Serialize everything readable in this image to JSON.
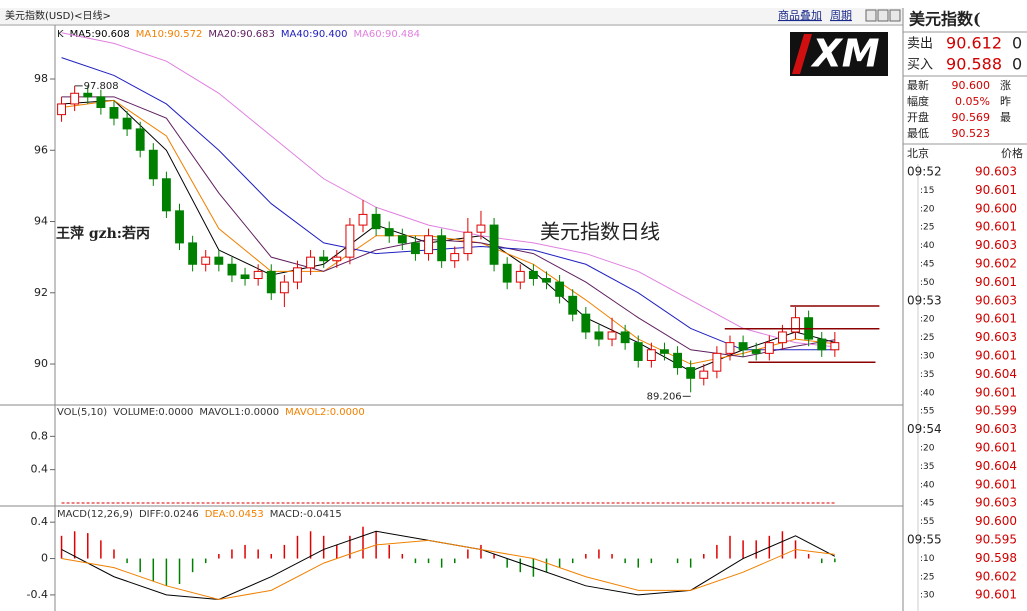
{
  "header": {
    "title": "美元指数(USD)<日线>",
    "links": [
      "商品叠加",
      "周期"
    ]
  },
  "logo": "XM",
  "chart_data": [
    {
      "type": "candlestick",
      "label_k": "K",
      "xlim": [
        -0.5,
        64.2
      ],
      "ylim": [
        88.85,
        99.46
      ],
      "yticks": [
        98,
        96,
        94,
        92,
        90
      ],
      "up_color": "#e00000",
      "down_color": "#008000",
      "open": [
        97.0,
        97.3,
        97.6,
        97.5,
        97.2,
        96.9,
        96.6,
        96.0,
        95.2,
        94.3,
        93.4,
        92.8,
        93.0,
        92.8,
        92.5,
        92.4,
        92.6,
        92.0,
        92.3,
        92.7,
        93.0,
        92.9,
        93.0,
        93.9,
        94.2,
        93.8,
        93.6,
        93.4,
        93.1,
        93.6,
        92.9,
        93.1,
        93.7,
        93.9,
        92.8,
        92.3,
        92.6,
        92.4,
        92.3,
        91.9,
        91.4,
        90.9,
        90.7,
        90.9,
        90.6,
        90.1,
        90.4,
        90.3,
        89.9,
        89.6,
        89.8,
        90.3,
        90.6,
        90.4,
        90.3,
        90.6,
        90.9,
        91.3,
        90.7,
        90.4
      ],
      "high": [
        97.5,
        97.808,
        97.8,
        97.7,
        97.4,
        97.1,
        96.8,
        96.2,
        95.4,
        94.5,
        93.6,
        93.2,
        93.2,
        93.0,
        92.7,
        92.8,
        92.8,
        92.5,
        92.9,
        93.2,
        93.2,
        93.2,
        94.1,
        94.6,
        94.4,
        94.0,
        93.8,
        93.6,
        93.8,
        93.8,
        93.3,
        94.1,
        94.3,
        94.1,
        93.0,
        92.8,
        92.8,
        92.6,
        92.5,
        92.1,
        91.6,
        91.1,
        91.3,
        91.1,
        90.8,
        90.6,
        90.6,
        90.5,
        90.1,
        90.0,
        90.5,
        90.8,
        90.8,
        90.6,
        90.8,
        91.1,
        91.6,
        91.5,
        90.9,
        90.9
      ],
      "low": [
        96.8,
        97.1,
        97.3,
        97.0,
        96.7,
        96.4,
        95.8,
        95.0,
        94.1,
        93.2,
        92.6,
        92.6,
        92.6,
        92.3,
        92.2,
        92.2,
        91.8,
        91.6,
        92.1,
        92.5,
        92.7,
        92.7,
        92.8,
        93.7,
        93.6,
        93.4,
        93.2,
        92.9,
        92.9,
        92.7,
        92.7,
        92.9,
        93.5,
        92.6,
        92.1,
        92.1,
        92.2,
        92.1,
        91.7,
        91.2,
        90.7,
        90.5,
        90.5,
        90.4,
        89.9,
        89.9,
        90.1,
        89.7,
        89.206,
        89.4,
        89.6,
        90.1,
        90.2,
        90.1,
        90.1,
        90.4,
        90.7,
        90.5,
        90.2,
        90.2
      ],
      "close": [
        97.3,
        97.6,
        97.5,
        97.2,
        96.9,
        96.6,
        96.0,
        95.2,
        94.3,
        93.4,
        92.8,
        93.0,
        92.8,
        92.5,
        92.4,
        92.6,
        92.0,
        92.3,
        92.7,
        93.0,
        92.9,
        93.0,
        93.9,
        94.2,
        93.8,
        93.6,
        93.4,
        93.1,
        93.6,
        92.9,
        93.1,
        93.7,
        93.9,
        92.8,
        92.3,
        92.6,
        92.4,
        92.3,
        91.9,
        91.4,
        90.9,
        90.7,
        90.9,
        90.6,
        90.1,
        90.4,
        90.3,
        89.9,
        89.6,
        89.8,
        90.3,
        90.6,
        90.4,
        90.3,
        90.6,
        90.9,
        91.3,
        90.7,
        90.4,
        90.6
      ],
      "ma_index": [
        0,
        4,
        8,
        12,
        16,
        20,
        24,
        28,
        32,
        36,
        40,
        44,
        48,
        52,
        56,
        59
      ],
      "series": [
        {
          "name": "MA5:90.608",
          "color": "#000000",
          "values": [
            97.3,
            97.4,
            96.0,
            93.2,
            92.5,
            92.8,
            93.9,
            93.4,
            93.6,
            92.6,
            91.3,
            90.6,
            89.8,
            90.4,
            90.9,
            90.61
          ]
        },
        {
          "name": "MA10:90.572",
          "color": "#f08000",
          "values": [
            97.2,
            97.4,
            96.4,
            93.8,
            92.6,
            92.6,
            93.6,
            93.6,
            93.4,
            92.8,
            91.8,
            90.7,
            90.0,
            90.3,
            90.7,
            90.57
          ]
        },
        {
          "name": "MA20:90.683",
          "color": "#602060",
          "values": [
            97.5,
            97.5,
            96.9,
            94.8,
            93.0,
            92.6,
            93.2,
            93.5,
            93.4,
            93.1,
            92.3,
            91.3,
            90.4,
            90.2,
            90.5,
            90.68
          ]
        },
        {
          "name": "MA40:90.400",
          "color": "#2020c0",
          "values": [
            98.6,
            98.1,
            97.3,
            96.0,
            94.5,
            93.4,
            93.1,
            93.2,
            93.3,
            93.2,
            92.8,
            92.0,
            91.0,
            90.4,
            90.4,
            90.4
          ]
        },
        {
          "name": "MA60:90.484",
          "color": "#e080e0",
          "values": [
            99.3,
            99.0,
            98.5,
            97.6,
            96.4,
            95.2,
            94.4,
            93.9,
            93.6,
            93.4,
            93.1,
            92.6,
            91.8,
            91.0,
            90.6,
            90.48
          ]
        }
      ],
      "annotations": [
        {
          "value": 97.808,
          "index": 1
        },
        {
          "value": 89.206,
          "index": 48
        }
      ],
      "levels": [
        {
          "value": 91.63,
          "from": 55.6,
          "to": 62.4
        },
        {
          "value": 90.99,
          "from": 50.6,
          "to": 62.4
        },
        {
          "value": 90.05,
          "from": 52.4,
          "to": 62.1
        }
      ],
      "level_color": "#8b0000",
      "notes": [
        "王萍 gzh:若丙",
        "美元指数日线"
      ]
    },
    {
      "type": "volume",
      "xlim": [
        -0.5,
        64.2
      ],
      "ylim": [
        -0.036,
        1.176
      ],
      "yticks": [
        0.8,
        0.4
      ],
      "legend": [
        {
          "text": "VOL(5,10)",
          "color": "#333333"
        },
        {
          "text": "VOLUME:0.0000",
          "color": "#333333"
        },
        {
          "text": "MAVOL1:0.0000",
          "color": "#333333"
        },
        {
          "text": "MAVOL2:0.0000",
          "color": "#f08000"
        }
      ],
      "color": "#e00000",
      "values": [
        0,
        0,
        0,
        0,
        0,
        0,
        0,
        0,
        0,
        0,
        0,
        0,
        0,
        0,
        0,
        0,
        0,
        0,
        0,
        0,
        0,
        0,
        0,
        0,
        0,
        0,
        0,
        0,
        0,
        0,
        0,
        0,
        0,
        0,
        0,
        0,
        0,
        0,
        0,
        0,
        0,
        0,
        0,
        0,
        0,
        0,
        0,
        0,
        0,
        0,
        0,
        0,
        0,
        0,
        0,
        0,
        0,
        0,
        0,
        0
      ]
    },
    {
      "type": "macd",
      "xlim": [
        -0.5,
        64.2
      ],
      "ylim": [
        -0.456,
        0.578
      ],
      "yticks": [
        0.4,
        0,
        -0.4
      ],
      "legend": [
        {
          "text": "MACD(12,26,9)",
          "color": "#333333"
        },
        {
          "text": "DIFF:0.0246",
          "color": "#333333"
        },
        {
          "text": "DEA:0.0453",
          "color": "#f08000"
        },
        {
          "text": "MACD:-0.0415",
          "color": "#333333"
        }
      ],
      "up_color": "#e00000",
      "down_color": "#008000",
      "values": [
        0.25,
        0.3,
        0.28,
        0.2,
        0.1,
        -0.05,
        -0.15,
        -0.25,
        -0.3,
        -0.28,
        -0.15,
        -0.05,
        0.05,
        0.1,
        0.15,
        0.1,
        0.05,
        0.15,
        0.25,
        0.3,
        0.25,
        0.15,
        0.25,
        0.35,
        0.3,
        0.15,
        0.05,
        -0.05,
        -0.05,
        -0.1,
        -0.05,
        0.1,
        0.15,
        0.05,
        -0.1,
        -0.15,
        -0.2,
        -0.15,
        -0.1,
        -0.05,
        0.05,
        0.1,
        0.05,
        -0.05,
        -0.1,
        -0.05,
        0,
        -0.05,
        -0.1,
        0.05,
        0.15,
        0.25,
        0.2,
        0.2,
        0.25,
        0.3,
        0.2,
        0.05,
        -0.05,
        -0.04
      ],
      "line_index": [
        0,
        4,
        8,
        12,
        16,
        20,
        24,
        28,
        32,
        36,
        40,
        44,
        48,
        52,
        56,
        59
      ],
      "series": [
        {
          "name": "DIFF",
          "color": "#000000",
          "values": [
            0.1,
            -0.2,
            -0.4,
            -0.45,
            -0.2,
            0.1,
            0.3,
            0.2,
            0.1,
            -0.1,
            -0.3,
            -0.4,
            -0.35,
            0.0,
            0.25,
            0.0246
          ]
        },
        {
          "name": "DEA",
          "color": "#f08000",
          "values": [
            0.0,
            -0.1,
            -0.3,
            -0.45,
            -0.35,
            -0.05,
            0.15,
            0.2,
            0.1,
            0.0,
            -0.2,
            -0.35,
            -0.35,
            -0.15,
            0.1,
            0.0453
          ]
        }
      ]
    }
  ],
  "quote": {
    "title": "美元指数(",
    "main_rows": [
      {
        "label": "卖出",
        "value": "90.612",
        "extra": "0"
      },
      {
        "label": "买入",
        "value": "90.588",
        "extra": "0"
      }
    ],
    "rows": [
      {
        "label": "最新",
        "value": "90.600",
        "extra": "涨"
      },
      {
        "label": "幅度",
        "value": "0.05%",
        "extra": "昨"
      },
      {
        "label": "开盘",
        "value": "90.569",
        "extra": "最"
      },
      {
        "label": "最低",
        "value": "90.523"
      }
    ]
  },
  "tick_table": {
    "headers": [
      "北京",
      "价格"
    ],
    "rows": [
      [
        "09:52",
        "90.603"
      ],
      [
        ":15",
        "90.601"
      ],
      [
        ":20",
        "90.600"
      ],
      [
        ":25",
        "90.601"
      ],
      [
        ":40",
        "90.603"
      ],
      [
        ":45",
        "90.602"
      ],
      [
        ":50",
        "90.601"
      ],
      [
        "09:53",
        "90.603"
      ],
      [
        ":20",
        "90.601"
      ],
      [
        ":25",
        "90.603"
      ],
      [
        ":30",
        "90.601"
      ],
      [
        ":35",
        "90.604"
      ],
      [
        ":40",
        "90.601"
      ],
      [
        ":55",
        "90.599"
      ],
      [
        "09:54",
        "90.603"
      ],
      [
        ":20",
        "90.601"
      ],
      [
        ":35",
        "90.604"
      ],
      [
        ":40",
        "90.601"
      ],
      [
        ":45",
        "90.603"
      ],
      [
        ":55",
        "90.600"
      ],
      [
        "09:55",
        "90.595"
      ],
      [
        ":10",
        "90.598"
      ],
      [
        ":25",
        "90.602"
      ],
      [
        ":30",
        "90.601"
      ]
    ]
  }
}
